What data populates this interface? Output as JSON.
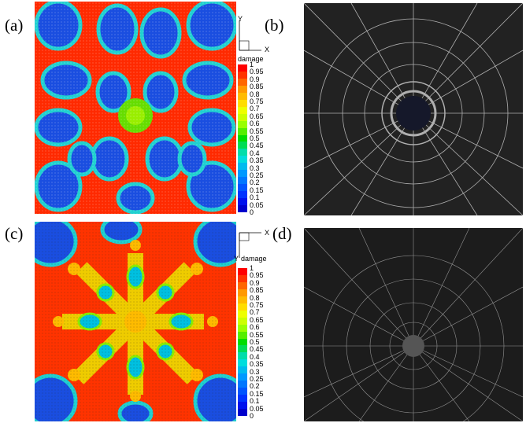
{
  "panels": {
    "a": {
      "label": "(a)"
    },
    "b": {
      "label": "(b)"
    },
    "c": {
      "label": "(c)"
    },
    "d": {
      "label": "(d)"
    }
  },
  "legend": {
    "title": "damage",
    "ticks": [
      "1",
      "0.95",
      "0.9",
      "0.85",
      "0.8",
      "0.75",
      "0.7",
      "0.65",
      "0.6",
      "0.55",
      "0.5",
      "0.45",
      "0.4",
      "0.35",
      "0.3",
      "0.25",
      "0.2",
      "0.15",
      "0.1",
      "0.05",
      "0"
    ]
  },
  "axes": {
    "x": "X",
    "y": "Y"
  },
  "colormap": [
    "#ff0000",
    "#ff3300",
    "#ff6600",
    "#ff9900",
    "#ffbb00",
    "#ffdd00",
    "#eeff00",
    "#ccff00",
    "#99ff00",
    "#55ee00",
    "#00dd00",
    "#00dd55",
    "#00ddaa",
    "#00dddd",
    "#00bbee",
    "#0099ff",
    "#0077ff",
    "#0055ff",
    "#0033ff",
    "#0011ee",
    "#0000cc"
  ]
}
